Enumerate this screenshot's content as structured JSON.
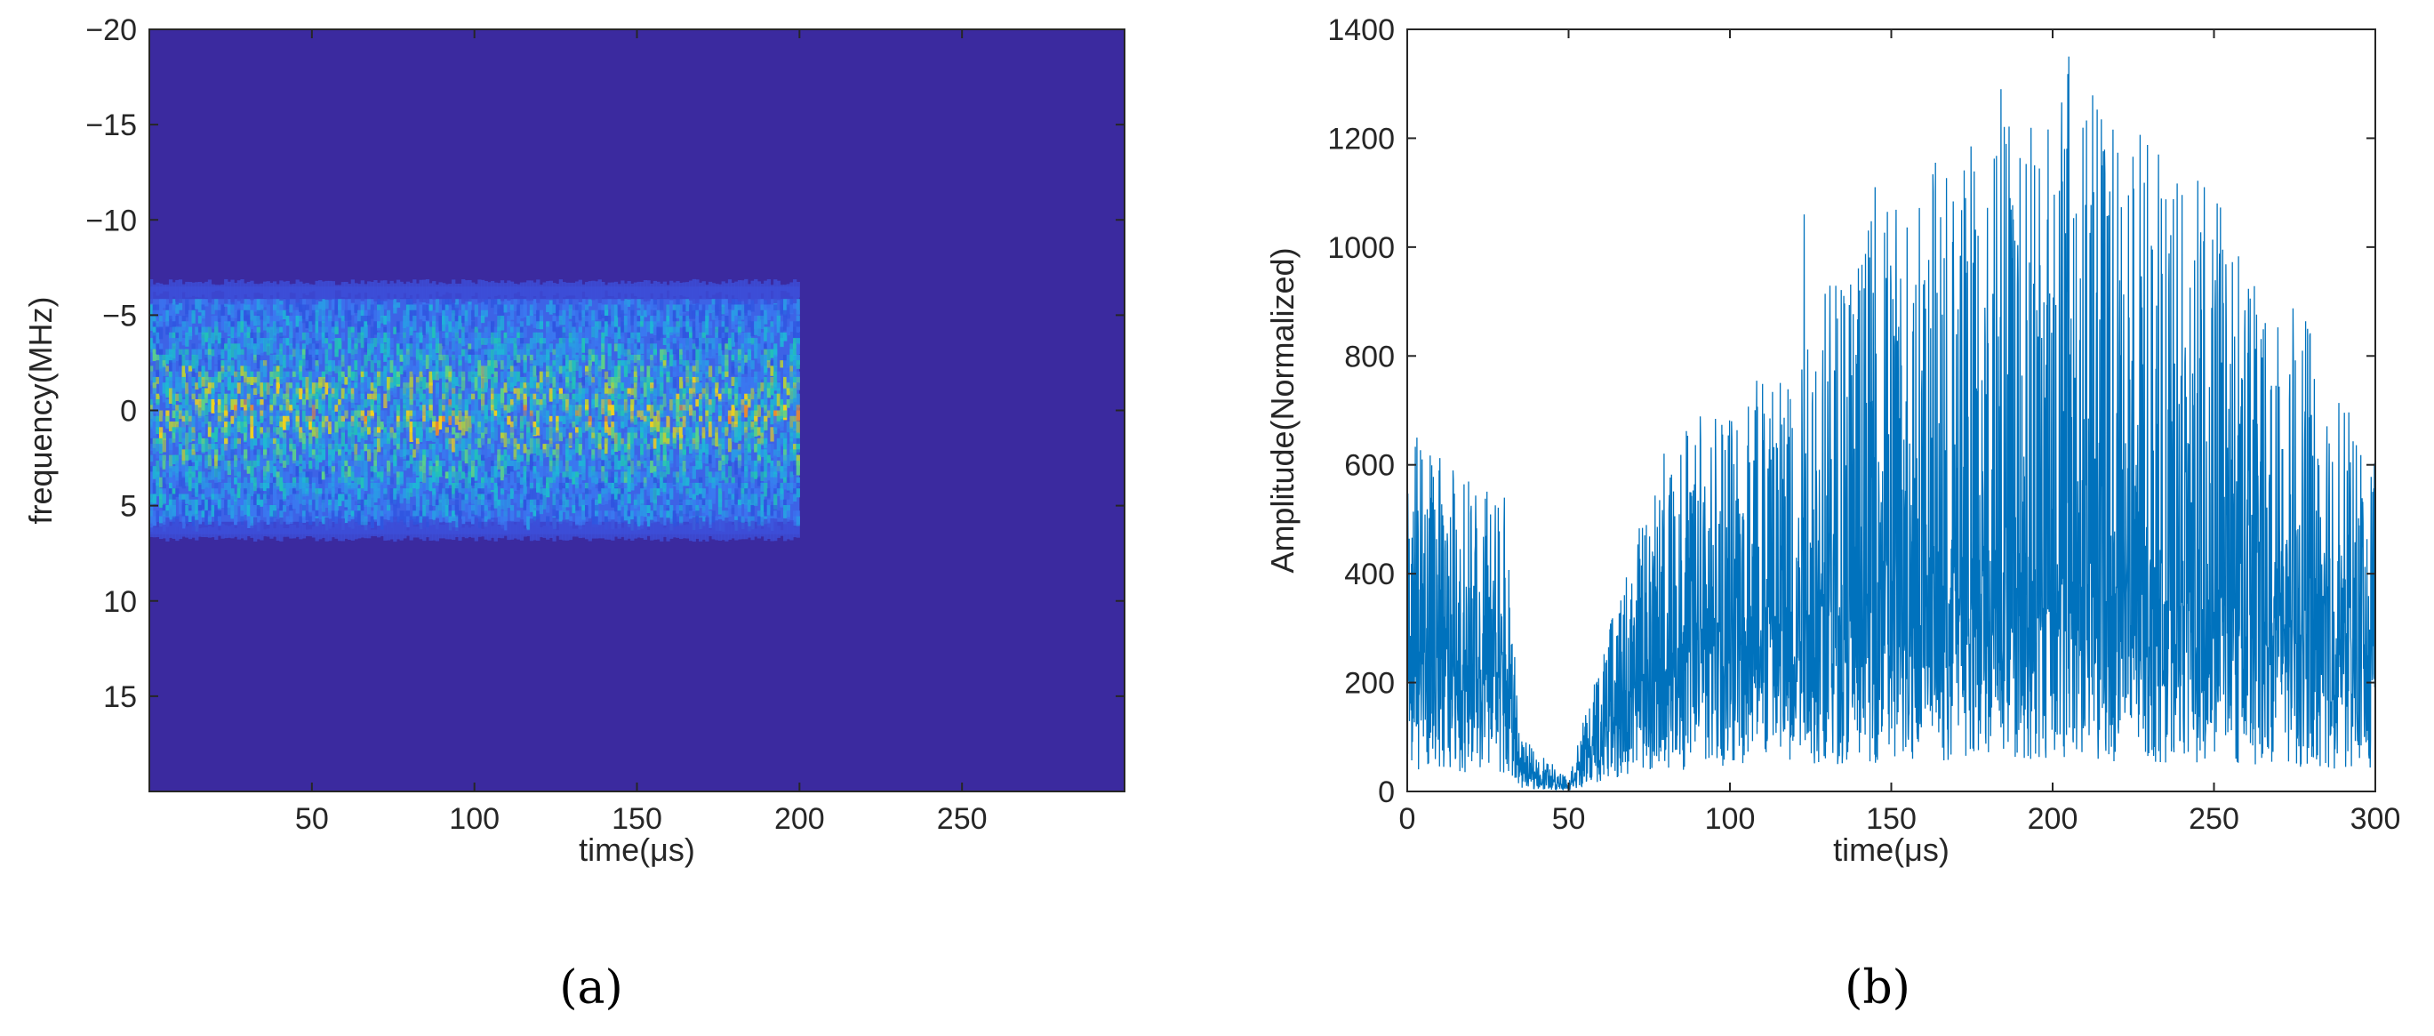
{
  "chart_data": [
    {
      "panel": "a",
      "type": "heatmap",
      "caption": "(a)",
      "xlabel": "time(μs)",
      "ylabel": "frequency(MHz)",
      "xlim": [
        0,
        300
      ],
      "ylim": [
        -20,
        20
      ],
      "y_reversed": true,
      "x_ticks": [
        50,
        100,
        150,
        200,
        250
      ],
      "y_ticks": [
        -20,
        -15,
        -10,
        -5,
        0,
        5,
        10,
        15
      ],
      "signal_band": {
        "t_start": 0,
        "t_end": 200,
        "f_low": -6.5,
        "f_high": 6.5
      },
      "colors": {
        "background": "#3b2a9f",
        "band_low": "#3d63e6",
        "band_mid": "#1fb6d6",
        "band_high": "#f2d21c"
      }
    },
    {
      "panel": "b",
      "type": "line",
      "caption": "(b)",
      "xlabel": "time(μs)",
      "ylabel": "Amplitude(Normalized)",
      "xlim": [
        0,
        300
      ],
      "ylim": [
        0,
        1400
      ],
      "x_ticks": [
        0,
        50,
        100,
        150,
        200,
        250,
        300
      ],
      "y_ticks": [
        0,
        200,
        400,
        600,
        800,
        1000,
        1200,
        1400
      ],
      "color": "#0072bd",
      "envelope": {
        "t": [
          0,
          30,
          35,
          50,
          60,
          80,
          100,
          150,
          200,
          250,
          280,
          300
        ],
        "mean": [
          250,
          220,
          40,
          10,
          120,
          250,
          300,
          350,
          380,
          340,
          280,
          250
        ],
        "max": [
          650,
          550,
          100,
          30,
          250,
          650,
          750,
          1100,
          1350,
          1110,
          850,
          600
        ]
      },
      "peaks": [
        {
          "t": 3,
          "value": 650
        },
        {
          "t": 123,
          "value": 1060
        },
        {
          "t": 145,
          "value": 1110
        },
        {
          "t": 173,
          "value": 1090
        },
        {
          "t": 184,
          "value": 1290
        },
        {
          "t": 205,
          "value": 1350
        },
        {
          "t": 247,
          "value": 1110
        },
        {
          "t": 279,
          "value": 850
        }
      ]
    }
  ]
}
